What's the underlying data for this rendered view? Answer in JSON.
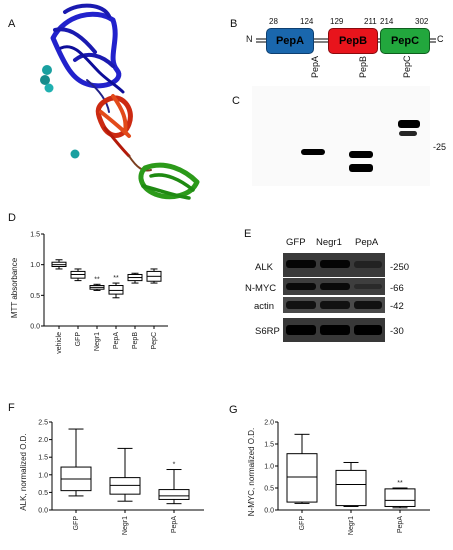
{
  "panels": {
    "A": "A",
    "B": "B",
    "C": "C",
    "D": "D",
    "E": "E",
    "F": "F",
    "G": "G"
  },
  "domains": {
    "n_term": "N",
    "c_term": "C",
    "items": [
      {
        "name": "PepA",
        "start": "28",
        "end": "124",
        "color": "#1a67ad"
      },
      {
        "name": "PepB",
        "start": "129",
        "end": "211",
        "color": "#e8141c"
      },
      {
        "name": "PepC",
        "start": "214",
        "end": "302",
        "color": "#22a73d"
      }
    ]
  },
  "blot_c": {
    "lanes": [
      "PepA",
      "PepB",
      "PepC"
    ],
    "marker": "-25"
  },
  "blot_e": {
    "columns": [
      "GFP",
      "Negr1",
      "PepA"
    ],
    "rows": [
      {
        "label": "ALK",
        "marker": "-250"
      },
      {
        "label": "N-MYC",
        "marker": "-66"
      },
      {
        "label": "actin",
        "marker": "-42"
      },
      {
        "label": "S6RP",
        "marker": "-30"
      }
    ]
  },
  "chart_data": [
    {
      "type": "box",
      "panel": "D",
      "ylabel": "MTT absorbance",
      "ylim": [
        0,
        1.5
      ],
      "yticks": [
        "0.0",
        "0.5",
        "1.0",
        "1.5"
      ],
      "categories": [
        "vehicle",
        "GFP",
        "Negr1",
        "PepA",
        "PepB",
        "PepC"
      ],
      "boxes": [
        {
          "min": 0.93,
          "q1": 0.97,
          "median": 1.0,
          "q3": 1.04,
          "max": 1.08
        },
        {
          "min": 0.74,
          "q1": 0.78,
          "median": 0.84,
          "q3": 0.89,
          "max": 0.93
        },
        {
          "min": 0.58,
          "q1": 0.6,
          "median": 0.63,
          "q3": 0.66,
          "max": 0.68
        },
        {
          "min": 0.46,
          "q1": 0.52,
          "median": 0.58,
          "q3": 0.66,
          "max": 0.7
        },
        {
          "min": 0.7,
          "q1": 0.74,
          "median": 0.79,
          "q3": 0.84,
          "max": 0.86
        },
        {
          "min": 0.7,
          "q1": 0.73,
          "median": 0.81,
          "q3": 0.89,
          "max": 0.93
        }
      ],
      "annotations": [
        "",
        "",
        "**",
        "**",
        "",
        ""
      ]
    },
    {
      "type": "box",
      "panel": "F",
      "ylabel": "ALK, normalized O.D.",
      "ylim": [
        0,
        2.5
      ],
      "yticks": [
        "0.0",
        "0.5",
        "1.0",
        "1.5",
        "2.0",
        "2.5"
      ],
      "categories": [
        "GFP",
        "Negr1",
        "PepA"
      ],
      "boxes": [
        {
          "min": 0.4,
          "q1": 0.55,
          "median": 0.88,
          "q3": 1.22,
          "max": 2.3
        },
        {
          "min": 0.25,
          "q1": 0.45,
          "median": 0.7,
          "q3": 0.92,
          "max": 1.75
        },
        {
          "min": 0.18,
          "q1": 0.3,
          "median": 0.4,
          "q3": 0.58,
          "max": 1.15
        }
      ],
      "annotations": [
        "",
        "",
        "*"
      ]
    },
    {
      "type": "box",
      "panel": "G",
      "ylabel": "N-MYC, normalized O.D.",
      "ylim": [
        0,
        2.0
      ],
      "yticks": [
        "0.0",
        "0.5",
        "1.0",
        "1.5",
        "2.0"
      ],
      "categories": [
        "GFP",
        "Negr1",
        "PepA"
      ],
      "boxes": [
        {
          "min": 0.15,
          "q1": 0.18,
          "median": 0.75,
          "q3": 1.28,
          "max": 1.72
        },
        {
          "min": 0.08,
          "q1": 0.1,
          "median": 0.58,
          "q3": 0.9,
          "max": 1.08
        },
        {
          "min": 0.05,
          "q1": 0.08,
          "median": 0.22,
          "q3": 0.48,
          "max": 0.5
        }
      ],
      "annotations": [
        "",
        "",
        "**"
      ]
    }
  ]
}
